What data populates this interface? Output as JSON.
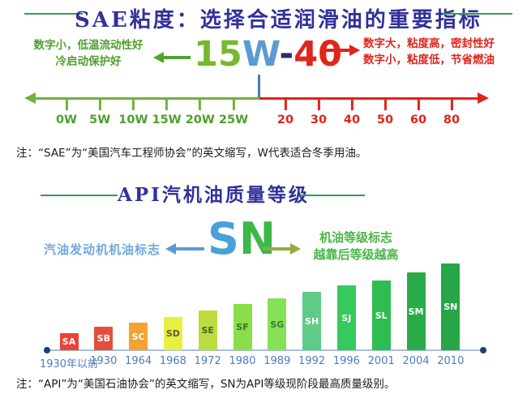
{
  "sae": {
    "title": "SAE粘度：选择合适润滑油的重要指标",
    "left_note": [
      "数字小，低温流动性好",
      "冷启动保护好"
    ],
    "code": {
      "winter_number": "15",
      "winter_w": "W",
      "dash": "-",
      "summer_number": "40"
    },
    "right_note": [
      "数字大，粘度高，密封性好",
      "数字小，粘度低，节省燃油"
    ],
    "winter_grades": [
      "0W",
      "5W",
      "10W",
      "15W",
      "20W",
      "25W"
    ],
    "summer_grades": [
      "20",
      "30",
      "40",
      "50",
      "60",
      "80"
    ],
    "footnote": "注：“SAE”为“美国汽车工程师协会”的英文缩写，W代表适合冬季用油。"
  },
  "api": {
    "title": "API汽机油质量等级",
    "left_label": "汽油发动机机油标志",
    "code": {
      "s": "S",
      "n": "N"
    },
    "right_label": [
      "机油等级标志",
      "越靠后等级越高"
    ],
    "footnote": "注：“API”为“美国石油协会”的英文缩写，SN为API等级现阶段最高质量级别。"
  },
  "chart_data": {
    "type": "bar",
    "title": "API汽机油质量等级",
    "bar_labels": [
      "SA",
      "SB",
      "SC",
      "SD",
      "SE",
      "SF",
      "SG",
      "SH",
      "SJ",
      "SL",
      "SM",
      "SN"
    ],
    "categories": [
      "1930年以前",
      "1930",
      "1964",
      "1968",
      "1972",
      "1980",
      "1989",
      "1992",
      "1996",
      "2001",
      "2004",
      "2010"
    ],
    "values": [
      21,
      29,
      34,
      41,
      49,
      57,
      64,
      72,
      80,
      86,
      96,
      107
    ],
    "value_note": "relative bar heights in px; grades increase monotonically by year",
    "bar_colors": [
      "#ee4136",
      "#e2503d",
      "#f5a233",
      "#e7ef3f",
      "#bcdd40",
      "#8ade4a",
      "#85e257",
      "#5fcb87",
      "#35c95e",
      "#2fbd52",
      "#2aab49",
      "#27a547"
    ],
    "bar_label_colors": [
      "#ffffff",
      "#ffffff",
      "#ffffff",
      "#5a5a3c",
      "#4f5f2d",
      "#3f6f2d",
      "#3c7a33",
      "#ffffff",
      "#ffffff",
      "#ffffff",
      "#ffffff",
      "#ffffff"
    ],
    "xlabel": "",
    "ylabel": "",
    "grid": false,
    "legend": false,
    "axis_color": "#a8c0dc",
    "axis_dot_color": "#1f3f77",
    "category_label_color": "#4a7ebb"
  },
  "colors": {
    "title_navy": "#31319b",
    "title_line_green": "#2f9e57",
    "green_text": "#4ea02e",
    "red_text": "#e0231b",
    "code_15_green": "#76b82f",
    "code_w_blue": "#5b9bd5",
    "code_40_red": "#e1251b",
    "winter_axis_green": "#6fb23c",
    "summer_axis_red": "#e0231b",
    "connector_blue": "#4a78b5",
    "sn_s_blue": "#4aa0d8",
    "sn_n_green": "#3cb84a",
    "api_left_blue": "#6fa8dc",
    "api_right_green": "#4bb649",
    "olive_arrow": "#8fad3e"
  }
}
